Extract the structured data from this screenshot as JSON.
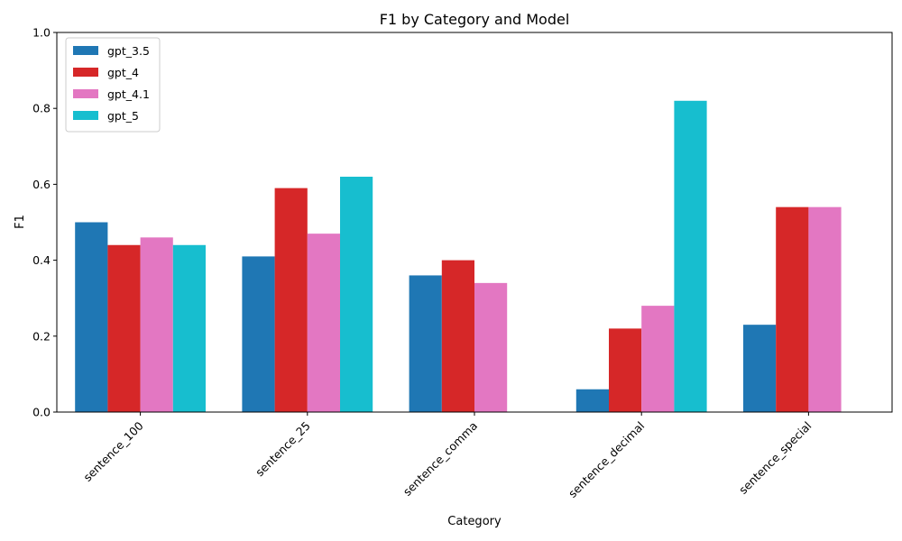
{
  "chart_data": {
    "type": "bar",
    "title": "F1 by Category and Model",
    "xlabel": "Category",
    "ylabel": "F1",
    "ylim": [
      0,
      1.0
    ],
    "yticks": [
      "0.0",
      "0.2",
      "0.4",
      "0.6",
      "0.8",
      "1.0"
    ],
    "categories": [
      "sentence_100",
      "sentence_25",
      "sentence_comma",
      "sentence_decimal",
      "sentence_special"
    ],
    "series": [
      {
        "name": "gpt_3.5",
        "color": "#1f77b4",
        "values": [
          0.5,
          0.41,
          0.36,
          0.06,
          0.23
        ]
      },
      {
        "name": "gpt_4",
        "color": "#d62728",
        "values": [
          0.44,
          0.59,
          0.4,
          0.22,
          0.54
        ]
      },
      {
        "name": "gpt_4.1",
        "color": "#e377c2",
        "values": [
          0.46,
          0.47,
          0.34,
          0.28,
          0.54
        ]
      },
      {
        "name": "gpt_5",
        "color": "#17becf",
        "values": [
          0.44,
          0.62,
          null,
          0.82,
          null
        ]
      }
    ],
    "legend_position": "top-left",
    "grid": false
  }
}
